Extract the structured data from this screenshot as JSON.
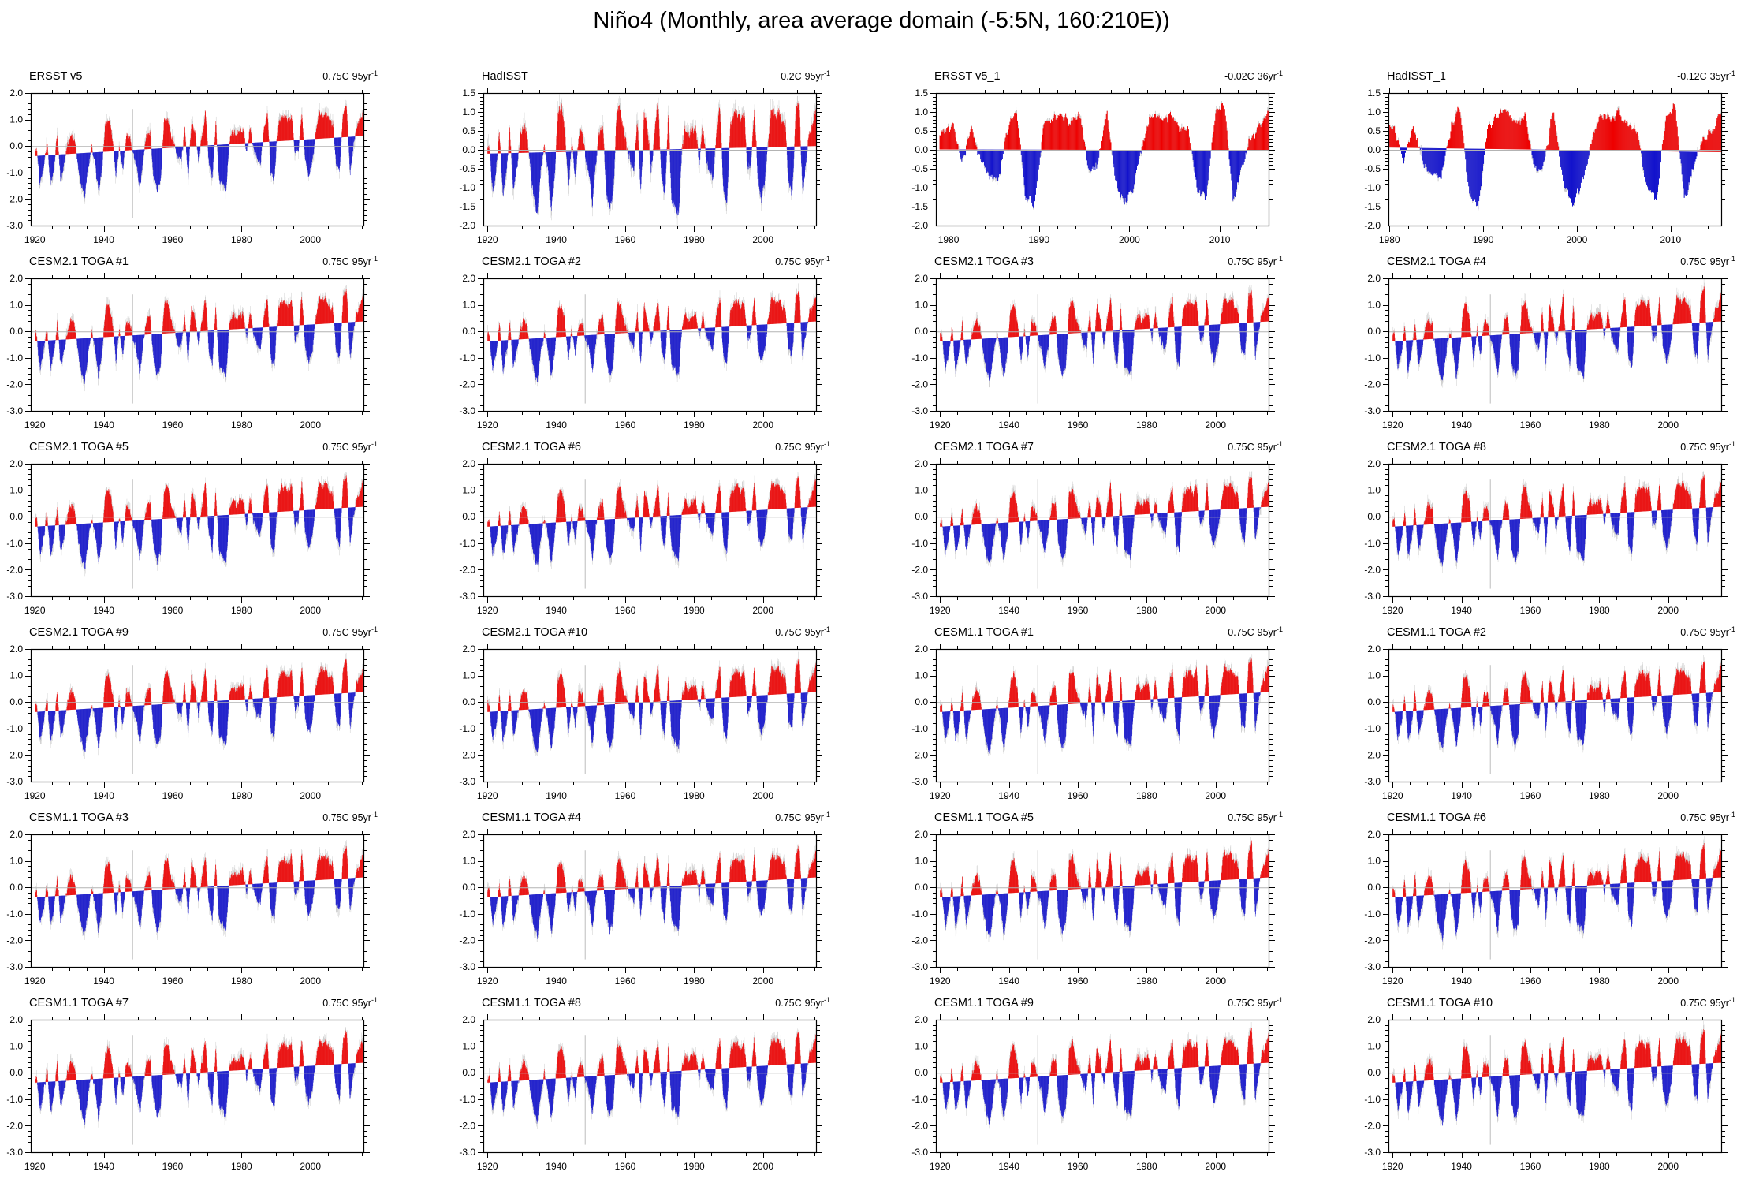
{
  "page_title": "Niño4 (Monthly, area average domain (-5:5N, 160:210E))",
  "colors": {
    "positive": "#ee0000",
    "negative": "#1212cc",
    "shadow": "#c9c9c9",
    "zero_line": "#b3b3b3",
    "frame": "#000000",
    "text": "#000000"
  },
  "chart_data": {
    "type": "bar",
    "title": "Niño4 (Monthly, area average domain (-5:5N, 160:210E))",
    "xlabel": "",
    "ylabel": "",
    "units": "C",
    "grid": false,
    "legend": "none",
    "annual_anomaly": {
      "start_year": 1920,
      "values": [
        0.25,
        -1.05,
        -0.5,
        0.55,
        -1.15,
        -0.5,
        0.7,
        -1.0,
        -0.4,
        0.35,
        0.75,
        0.5,
        -0.45,
        -1.25,
        -1.6,
        -0.55,
        0.2,
        -0.4,
        -1.55,
        -0.6,
        1.05,
        1.2,
        0.55,
        -0.95,
        0.25,
        -0.75,
        0.5,
        0.45,
        -0.15,
        -0.55,
        -1.45,
        -0.25,
        0.55,
        0.65,
        -1.05,
        -1.55,
        -1.2,
        1.0,
        1.2,
        0.5,
        0.1,
        -0.35,
        -0.55,
        0.75,
        -1.2,
        0.95,
        0.5,
        -0.5,
        0.35,
        1.25,
        -0.65,
        -1.3,
        0.9,
        -1.35,
        -1.5,
        -1.7,
        0.15,
        0.55,
        0.3,
        0.5,
        0.55,
        -0.4,
        0.6,
        -0.25,
        -0.65,
        -0.8,
        0.5,
        1.1,
        -1.15,
        -1.5,
        0.6,
        0.85,
        0.95,
        0.7,
        0.95,
        -0.55,
        -0.4,
        1.1,
        -0.85,
        -1.4,
        -0.95,
        0.15,
        1.0,
        0.85,
        0.95,
        0.65,
        0.55,
        -1.05,
        -1.25,
        0.95,
        1.25,
        -1.35,
        -0.35,
        0.35,
        0.6,
        1.05
      ]
    },
    "axis_groups": {
      "hist_wide": {
        "ylim": [
          -3.0,
          2.0
        ],
        "ytick_vals": [
          2.0,
          1.0,
          0.0,
          -1.0,
          -2.0,
          -3.0
        ],
        "ytick_labels": [
          "2.0",
          "1.0",
          "0.0",
          "-1.0",
          "-2.0",
          "-3.0"
        ],
        "yminor": 0.2,
        "xlim": [
          1918.8,
          2015.4
        ],
        "xtick_vals": [
          1920,
          1940,
          1960,
          1980,
          2000
        ],
        "xtick_labels": [
          "1920",
          "1940",
          "1960",
          "1980",
          "2000"
        ],
        "xminor": 5,
        "data_start": 1920,
        "data_end": 2016
      },
      "hist_obs": {
        "ylim": [
          -2.0,
          1.5
        ],
        "ytick_vals": [
          1.5,
          1.0,
          0.5,
          0.0,
          -0.5,
          -1.0,
          -1.5,
          -2.0
        ],
        "ytick_labels": [
          "1.5",
          "1.0",
          "0.5",
          "0.0",
          "-0.5",
          "-1.0",
          "-1.5",
          "-2.0"
        ],
        "yminor": 0.1,
        "xlim": [
          1918.8,
          2015.4
        ],
        "xtick_vals": [
          1920,
          1940,
          1960,
          1980,
          2000
        ],
        "xtick_labels": [
          "1920",
          "1940",
          "1960",
          "1980",
          "2000"
        ],
        "xminor": 5,
        "data_start": 1920,
        "data_end": 2016
      },
      "sat_1979": {
        "ylim": [
          -2.0,
          1.5
        ],
        "ytick_vals": [
          1.5,
          1.0,
          0.5,
          0.0,
          -0.5,
          -1.0,
          -1.5,
          -2.0
        ],
        "ytick_labels": [
          "1.5",
          "1.0",
          "0.5",
          "0.0",
          "-0.5",
          "-1.0",
          "-1.5",
          "-2.0"
        ],
        "yminor": 0.1,
        "xlim": [
          1978.6,
          2015.4
        ],
        "xtick_vals": [
          1980,
          1990,
          2000,
          2010
        ],
        "xtick_labels": [
          "1980",
          "1990",
          "2000",
          "2010"
        ],
        "xminor": 2,
        "data_start": 1979,
        "data_end": 2016
      },
      "sat_1980": {
        "ylim": [
          -2.0,
          1.5
        ],
        "ytick_vals": [
          1.5,
          1.0,
          0.5,
          0.0,
          -0.5,
          -1.0,
          -1.5,
          -2.0
        ],
        "ytick_labels": [
          "1.5",
          "1.0",
          "0.5",
          "0.0",
          "-0.5",
          "-1.0",
          "-1.5",
          "-2.0"
        ],
        "yminor": 0.1,
        "xlim": [
          1979.9,
          2015.4
        ],
        "xtick_vals": [
          1980,
          1990,
          2000,
          2010
        ],
        "xtick_labels": [
          "1980",
          "1990",
          "2000",
          "2010"
        ],
        "xminor": 2,
        "data_start": 1980,
        "data_end": 2016
      }
    },
    "panels": [
      {
        "title": "ERSST v5",
        "trend": {
          "value": "0.75C",
          "per": "95yr",
          "exp": "-1"
        },
        "group": "hist_wide",
        "trend_total": 0.75,
        "trend_span": [
          1920,
          2015
        ],
        "spike_1948": true,
        "seed": 11
      },
      {
        "title": "HadISST",
        "trend": {
          "value": "0.2C",
          "per": "95yr",
          "exp": "-1"
        },
        "group": "hist_obs",
        "trend_total": 0.2,
        "trend_span": [
          1920,
          2015
        ],
        "spike_1948": false,
        "seed": 23
      },
      {
        "title": "ERSST v5_1",
        "trend": {
          "value": "-0.02C",
          "per": "36yr",
          "exp": "-1"
        },
        "group": "sat_1979",
        "trend_total": -0.02,
        "trend_span": [
          1979,
          2015
        ],
        "spike_1948": false,
        "seed": 37
      },
      {
        "title": "HadISST_1",
        "trend": {
          "value": "-0.12C",
          "per": "35yr",
          "exp": "-1"
        },
        "group": "sat_1980",
        "trend_total": -0.12,
        "trend_span": [
          1980,
          2015
        ],
        "spike_1948": false,
        "seed": 41
      },
      {
        "title": "CESM2.1 TOGA #1",
        "trend": {
          "value": "0.75C",
          "per": "95yr",
          "exp": "-1"
        },
        "group": "hist_wide",
        "trend_total": 0.75,
        "trend_span": [
          1920,
          2015
        ],
        "spike_1948": true,
        "seed": 101
      },
      {
        "title": "CESM2.1 TOGA #2",
        "trend": {
          "value": "0.75C",
          "per": "95yr",
          "exp": "-1"
        },
        "group": "hist_wide",
        "trend_total": 0.75,
        "trend_span": [
          1920,
          2015
        ],
        "spike_1948": true,
        "seed": 102
      },
      {
        "title": "CESM2.1 TOGA #3",
        "trend": {
          "value": "0.75C",
          "per": "95yr",
          "exp": "-1"
        },
        "group": "hist_wide",
        "trend_total": 0.75,
        "trend_span": [
          1920,
          2015
        ],
        "spike_1948": true,
        "seed": 103
      },
      {
        "title": "CESM2.1 TOGA #4",
        "trend": {
          "value": "0.75C",
          "per": "95yr",
          "exp": "-1"
        },
        "group": "hist_wide",
        "trend_total": 0.75,
        "trend_span": [
          1920,
          2015
        ],
        "spike_1948": true,
        "seed": 104
      },
      {
        "title": "CESM2.1 TOGA #5",
        "trend": {
          "value": "0.75C",
          "per": "95yr",
          "exp": "-1"
        },
        "group": "hist_wide",
        "trend_total": 0.75,
        "trend_span": [
          1920,
          2015
        ],
        "spike_1948": true,
        "seed": 105
      },
      {
        "title": "CESM2.1 TOGA #6",
        "trend": {
          "value": "0.75C",
          "per": "95yr",
          "exp": "-1"
        },
        "group": "hist_wide",
        "trend_total": 0.75,
        "trend_span": [
          1920,
          2015
        ],
        "spike_1948": true,
        "seed": 106
      },
      {
        "title": "CESM2.1 TOGA #7",
        "trend": {
          "value": "0.75C",
          "per": "95yr",
          "exp": "-1"
        },
        "group": "hist_wide",
        "trend_total": 0.75,
        "trend_span": [
          1920,
          2015
        ],
        "spike_1948": true,
        "seed": 107
      },
      {
        "title": "CESM2.1 TOGA #8",
        "trend": {
          "value": "0.75C",
          "per": "95yr",
          "exp": "-1"
        },
        "group": "hist_wide",
        "trend_total": 0.75,
        "trend_span": [
          1920,
          2015
        ],
        "spike_1948": true,
        "seed": 108
      },
      {
        "title": "CESM2.1 TOGA #9",
        "trend": {
          "value": "0.75C",
          "per": "95yr",
          "exp": "-1"
        },
        "group": "hist_wide",
        "trend_total": 0.75,
        "trend_span": [
          1920,
          2015
        ],
        "spike_1948": true,
        "seed": 109
      },
      {
        "title": "CESM2.1 TOGA #10",
        "trend": {
          "value": "0.75C",
          "per": "95yr",
          "exp": "-1"
        },
        "group": "hist_wide",
        "trend_total": 0.75,
        "trend_span": [
          1920,
          2015
        ],
        "spike_1948": true,
        "seed": 110
      },
      {
        "title": "CESM1.1 TOGA #1",
        "trend": {
          "value": "0.75C",
          "per": "95yr",
          "exp": "-1"
        },
        "group": "hist_wide",
        "trend_total": 0.75,
        "trend_span": [
          1920,
          2015
        ],
        "spike_1948": true,
        "seed": 111
      },
      {
        "title": "CESM1.1 TOGA #2",
        "trend": {
          "value": "0.75C",
          "per": "95yr",
          "exp": "-1"
        },
        "group": "hist_wide",
        "trend_total": 0.75,
        "trend_span": [
          1920,
          2015
        ],
        "spike_1948": true,
        "seed": 112
      },
      {
        "title": "CESM1.1 TOGA #3",
        "trend": {
          "value": "0.75C",
          "per": "95yr",
          "exp": "-1"
        },
        "group": "hist_wide",
        "trend_total": 0.75,
        "trend_span": [
          1920,
          2015
        ],
        "spike_1948": true,
        "seed": 113
      },
      {
        "title": "CESM1.1 TOGA #4",
        "trend": {
          "value": "0.75C",
          "per": "95yr",
          "exp": "-1"
        },
        "group": "hist_wide",
        "trend_total": 0.75,
        "trend_span": [
          1920,
          2015
        ],
        "spike_1948": true,
        "seed": 114
      },
      {
        "title": "CESM1.1 TOGA #5",
        "trend": {
          "value": "0.75C",
          "per": "95yr",
          "exp": "-1"
        },
        "group": "hist_wide",
        "trend_total": 0.75,
        "trend_span": [
          1920,
          2015
        ],
        "spike_1948": true,
        "seed": 115
      },
      {
        "title": "CESM1.1 TOGA #6",
        "trend": {
          "value": "0.75C",
          "per": "95yr",
          "exp": "-1"
        },
        "group": "hist_wide",
        "trend_total": 0.75,
        "trend_span": [
          1920,
          2015
        ],
        "spike_1948": true,
        "seed": 116
      },
      {
        "title": "CESM1.1 TOGA #7",
        "trend": {
          "value": "0.75C",
          "per": "95yr",
          "exp": "-1"
        },
        "group": "hist_wide",
        "trend_total": 0.75,
        "trend_span": [
          1920,
          2015
        ],
        "spike_1948": true,
        "seed": 117
      },
      {
        "title": "CESM1.1 TOGA #8",
        "trend": {
          "value": "0.75C",
          "per": "95yr",
          "exp": "-1"
        },
        "group": "hist_wide",
        "trend_total": 0.75,
        "trend_span": [
          1920,
          2015
        ],
        "spike_1948": true,
        "seed": 118
      },
      {
        "title": "CESM1.1 TOGA #9",
        "trend": {
          "value": "0.75C",
          "per": "95yr",
          "exp": "-1"
        },
        "group": "hist_wide",
        "trend_total": 0.75,
        "trend_span": [
          1920,
          2015
        ],
        "spike_1948": true,
        "seed": 119
      },
      {
        "title": "CESM1.1 TOGA #10",
        "trend": {
          "value": "0.75C",
          "per": "95yr",
          "exp": "-1"
        },
        "group": "hist_wide",
        "trend_total": 0.75,
        "trend_span": [
          1920,
          2015
        ],
        "spike_1948": true,
        "seed": 120
      }
    ]
  }
}
